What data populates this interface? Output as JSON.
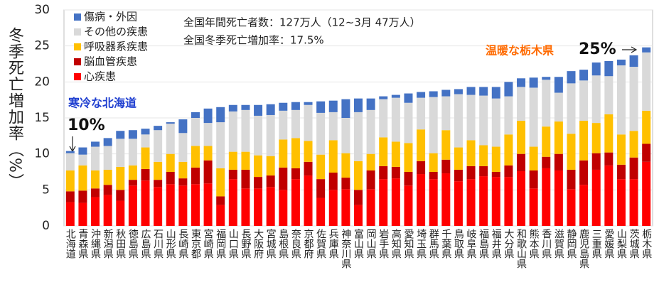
{
  "chart_data": {
    "type": "stacked_bar",
    "y_label": "冬季死亡増加率（%）",
    "annotations": [
      "全国年間死亡者数：127万人（12~3月 47万人）",
      "全国冬季死亡増加率：17.5%",
      "寒冷な北海道",
      "10%",
      "温暖な栃木県",
      "25%"
    ],
    "categories": [
      "北海道",
      "青森県",
      "沖縄県",
      "新潟県",
      "秋田県",
      "徳島県",
      "広島県",
      "石川県",
      "山形県",
      "長崎県",
      "東京都",
      "宮崎県",
      "福岡県",
      "山口県",
      "長野県",
      "大阪府",
      "宮城県",
      "島根県",
      "奈良県",
      "京都府",
      "佐賀県",
      "兵庫県",
      "神奈川県",
      "富山県",
      "岡山県",
      "岩手県",
      "高知県",
      "愛知県",
      "埼玉県",
      "群馬県",
      "千葉県",
      "鳥取県",
      "岐阜県",
      "福島県",
      "福井県",
      "大分県",
      "和歌山県",
      "熊本県",
      "香川県",
      "滋賀県",
      "静岡県",
      "鹿児島県",
      "三重県",
      "愛媛県",
      "山梨県",
      "茨城県",
      "栃木県"
    ],
    "series": [
      {
        "name": "心疾患",
        "color": "#ff0000",
        "values": [
          3.3,
          3.2,
          4.0,
          4.3,
          3.5,
          5.6,
          6.3,
          5.4,
          5.8,
          5.6,
          5.8,
          5.9,
          2.9,
          6.5,
          5.2,
          5.2,
          5.4,
          5.0,
          6.5,
          7.0,
          3.9,
          5.0,
          5.1,
          2.9,
          5.1,
          6.5,
          6.6,
          5.6,
          7.2,
          6.5,
          7.3,
          6.2,
          6.5,
          6.9,
          6.8,
          6.8,
          7.6,
          5.2,
          8.0,
          7.7,
          5.1,
          5.7,
          7.8,
          8.4,
          6.5,
          6.5,
          8.9
        ]
      },
      {
        "name": "脳血管疾患",
        "color": "#c00000",
        "values": [
          1.5,
          1.7,
          1.2,
          1.4,
          1.5,
          0.8,
          1.6,
          1.0,
          1.7,
          1.0,
          2.3,
          3.2,
          1.2,
          1.3,
          2.6,
          1.6,
          1.6,
          3.1,
          1.5,
          1.9,
          2.6,
          2.4,
          1.6,
          2.1,
          2.6,
          1.8,
          1.6,
          1.9,
          1.8,
          1.0,
          1.9,
          1.6,
          1.8,
          1.4,
          0.7,
          1.6,
          2.4,
          2.5,
          1.6,
          2.3,
          2.7,
          3.4,
          2.3,
          1.8,
          2.0,
          3.0,
          2.5
        ]
      },
      {
        "name": "呼吸器系疾患",
        "color": "#ffc000",
        "values": [
          2.9,
          3.5,
          2.5,
          2.1,
          3.2,
          2.0,
          3.0,
          2.5,
          2.5,
          2.3,
          3.0,
          2.0,
          3.9,
          2.5,
          2.5,
          3.0,
          2.7,
          3.9,
          4.2,
          2.9,
          3.4,
          4.5,
          3.4,
          4.0,
          2.3,
          4.0,
          3.5,
          4.0,
          4.4,
          2.6,
          4.1,
          3.1,
          3.6,
          2.9,
          3.5,
          4.3,
          4.6,
          3.3,
          4.2,
          4.5,
          5.0,
          5.5,
          4.2,
          5.3,
          4.2,
          3.7,
          4.6
        ]
      },
      {
        "name": "その他の疾患",
        "color": "#d9d9d9",
        "values": [
          2.4,
          1.5,
          3.3,
          3.3,
          3.9,
          3.7,
          1.8,
          4.4,
          4.2,
          4.0,
          3.9,
          3.2,
          6.4,
          5.6,
          5.8,
          5.5,
          5.7,
          4.0,
          3.9,
          5.0,
          5.8,
          3.9,
          4.9,
          6.8,
          6.1,
          5.3,
          6.1,
          5.6,
          4.4,
          7.8,
          4.7,
          7.4,
          6.3,
          6.9,
          6.7,
          5.3,
          4.7,
          8.2,
          6.5,
          4.0,
          7.0,
          5.6,
          6.6,
          5.3,
          9.6,
          8.9,
          8.1
        ]
      },
      {
        "name": "傷病・外因",
        "color": "#4472c4",
        "values": [
          0.3,
          1.0,
          0.7,
          1.1,
          1.1,
          1.2,
          0.8,
          0.6,
          0.2,
          1.9,
          0.8,
          2.0,
          2.1,
          0.9,
          0.7,
          1.5,
          1.5,
          1.1,
          1.1,
          0.4,
          1.6,
          1.6,
          2.6,
          1.9,
          1.6,
          0.4,
          0.4,
          1.3,
          0.8,
          0.8,
          0.9,
          0.7,
          1.1,
          1.2,
          1.6,
          2.0,
          1.2,
          1.4,
          0.4,
          2.2,
          1.7,
          1.5,
          1.8,
          2.1,
          0.8,
          1.6,
          0.7
        ]
      }
    ],
    "ylim": [
      0,
      30
    ],
    "yticks": [
      0,
      5,
      10,
      15,
      20,
      25,
      30
    ],
    "grid": true,
    "legend": "top-left"
  }
}
